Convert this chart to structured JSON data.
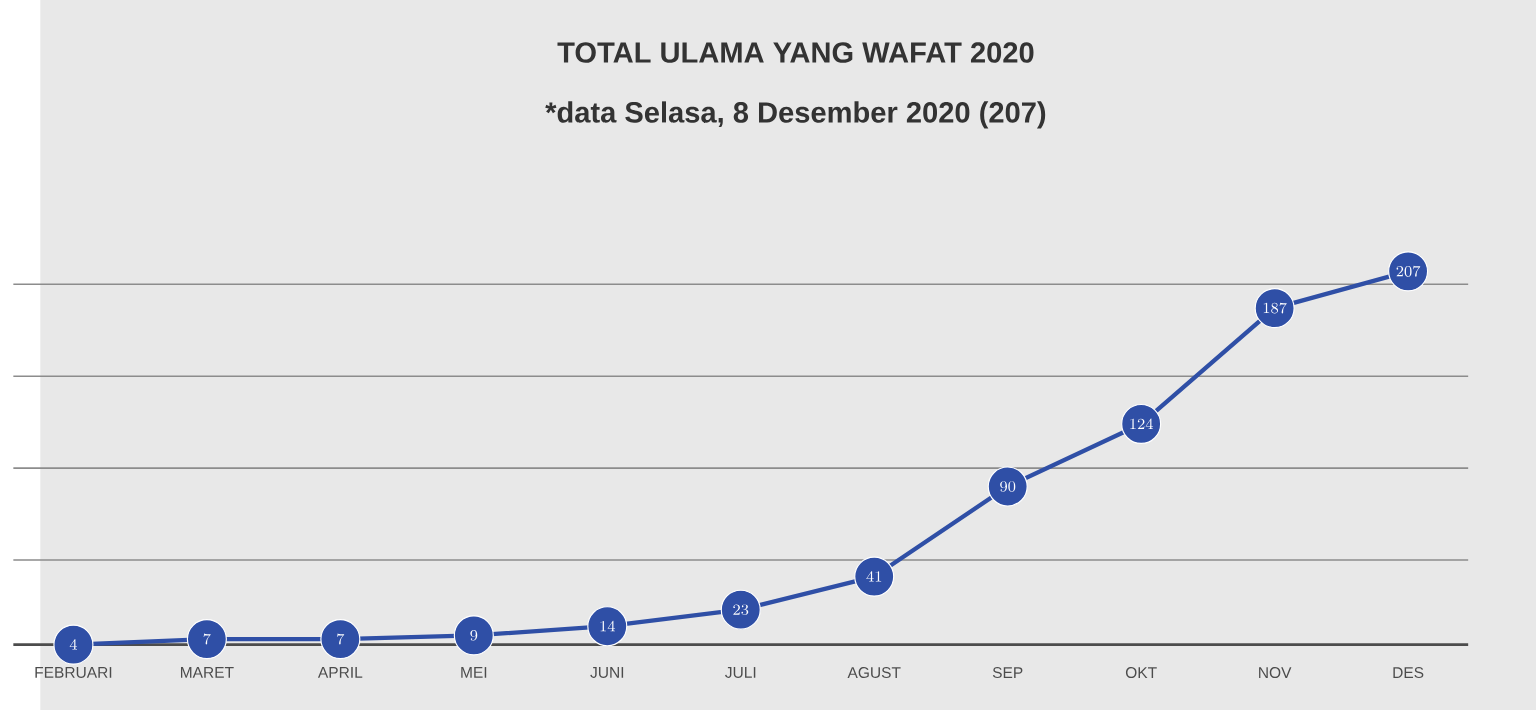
{
  "chart_data": {
    "type": "line",
    "title": "TOTAL ULAMA YANG WAFAT 2020",
    "subtitle": "*data Selasa, 8 Desember 2020  (207)",
    "categories": [
      "FEBRUARI",
      "MARET",
      "APRIL",
      "MEI",
      "JUNI",
      "JULI",
      "AGUST",
      "SEP",
      "OKT",
      "NOV",
      "DES"
    ],
    "values": [
      4,
      7,
      7,
      9,
      14,
      23,
      41,
      90,
      124,
      187,
      207
    ],
    "color": "#2f4fa6",
    "marker": "circle",
    "data_labels": true,
    "grid": "y",
    "tick_labels": "x"
  }
}
